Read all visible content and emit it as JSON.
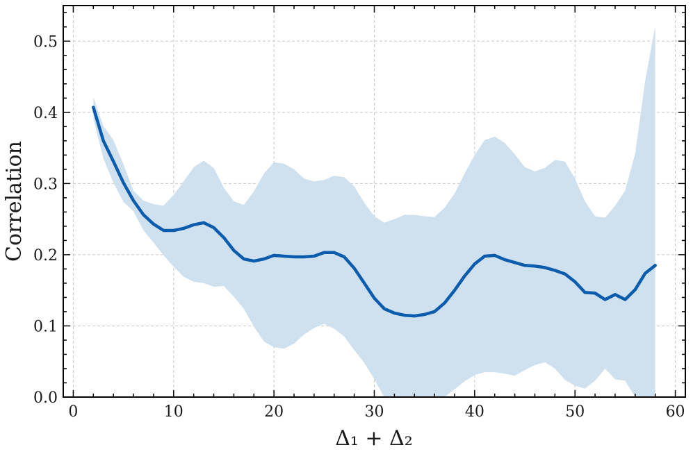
{
  "chart_data": {
    "type": "line",
    "xlabel": "Δ₁ + Δ₂",
    "ylabel": "Correlation",
    "xlim": [
      -1,
      61
    ],
    "ylim": [
      0.0,
      0.55
    ],
    "x_ticks": [
      0,
      10,
      20,
      30,
      40,
      50,
      60
    ],
    "x_tick_labels": [
      "0",
      "10",
      "20",
      "30",
      "40",
      "50",
      "60"
    ],
    "y_ticks": [
      0.0,
      0.1,
      0.2,
      0.3,
      0.4,
      0.5
    ],
    "y_tick_labels": [
      "0.0",
      "0.1",
      "0.2",
      "0.3",
      "0.4",
      "0.5"
    ],
    "grid": true,
    "colors": {
      "line": "#0b5cad",
      "band": "#cfe0ef"
    },
    "series": [
      {
        "x": [
          2,
          3,
          4,
          5,
          6,
          7,
          8,
          9,
          10,
          11,
          12,
          13,
          14,
          15,
          16,
          17,
          18,
          19,
          20,
          21,
          22,
          23,
          24,
          25,
          26,
          27,
          28,
          29,
          30,
          31,
          32,
          33,
          34,
          35,
          36,
          37,
          38,
          39,
          40,
          41,
          42,
          43,
          44,
          45,
          46,
          47,
          48,
          49,
          50,
          51,
          52,
          53,
          54,
          55,
          56,
          57,
          58
        ],
        "mean": [
          0.407,
          0.36,
          0.331,
          0.301,
          0.276,
          0.256,
          0.243,
          0.234,
          0.234,
          0.237,
          0.242,
          0.245,
          0.238,
          0.224,
          0.206,
          0.194,
          0.191,
          0.194,
          0.199,
          0.198,
          0.197,
          0.197,
          0.198,
          0.203,
          0.203,
          0.197,
          0.181,
          0.16,
          0.139,
          0.124,
          0.118,
          0.115,
          0.114,
          0.116,
          0.12,
          0.132,
          0.15,
          0.17,
          0.187,
          0.198,
          0.199,
          0.193,
          0.189,
          0.185,
          0.184,
          0.182,
          0.178,
          0.173,
          0.162,
          0.147,
          0.146,
          0.137,
          0.144,
          0.137,
          0.151,
          0.174,
          0.185
        ],
        "upper": [
          0.421,
          0.381,
          0.361,
          0.327,
          0.29,
          0.276,
          0.271,
          0.269,
          0.284,
          0.303,
          0.323,
          0.332,
          0.322,
          0.294,
          0.275,
          0.27,
          0.289,
          0.314,
          0.33,
          0.328,
          0.32,
          0.307,
          0.303,
          0.305,
          0.311,
          0.309,
          0.296,
          0.273,
          0.254,
          0.245,
          0.25,
          0.256,
          0.256,
          0.254,
          0.253,
          0.266,
          0.286,
          0.314,
          0.34,
          0.361,
          0.366,
          0.357,
          0.341,
          0.323,
          0.317,
          0.322,
          0.333,
          0.331,
          0.307,
          0.275,
          0.254,
          0.252,
          0.269,
          0.29,
          0.342,
          0.445,
          0.521
        ],
        "lower": [
          0.391,
          0.335,
          0.301,
          0.274,
          0.261,
          0.234,
          0.217,
          0.199,
          0.183,
          0.169,
          0.162,
          0.16,
          0.155,
          0.156,
          0.141,
          0.124,
          0.099,
          0.078,
          0.07,
          0.068,
          0.075,
          0.088,
          0.097,
          0.103,
          0.096,
          0.085,
          0.066,
          0.048,
          0.025,
          0.0,
          0.0,
          0.0,
          0.0,
          0.0,
          0.0,
          0.0,
          0.011,
          0.022,
          0.031,
          0.035,
          0.035,
          0.033,
          0.03,
          0.038,
          0.045,
          0.049,
          0.04,
          0.024,
          0.016,
          0.012,
          0.023,
          0.04,
          0.025,
          0.023,
          0.0,
          0.0,
          0.0
        ]
      }
    ]
  }
}
